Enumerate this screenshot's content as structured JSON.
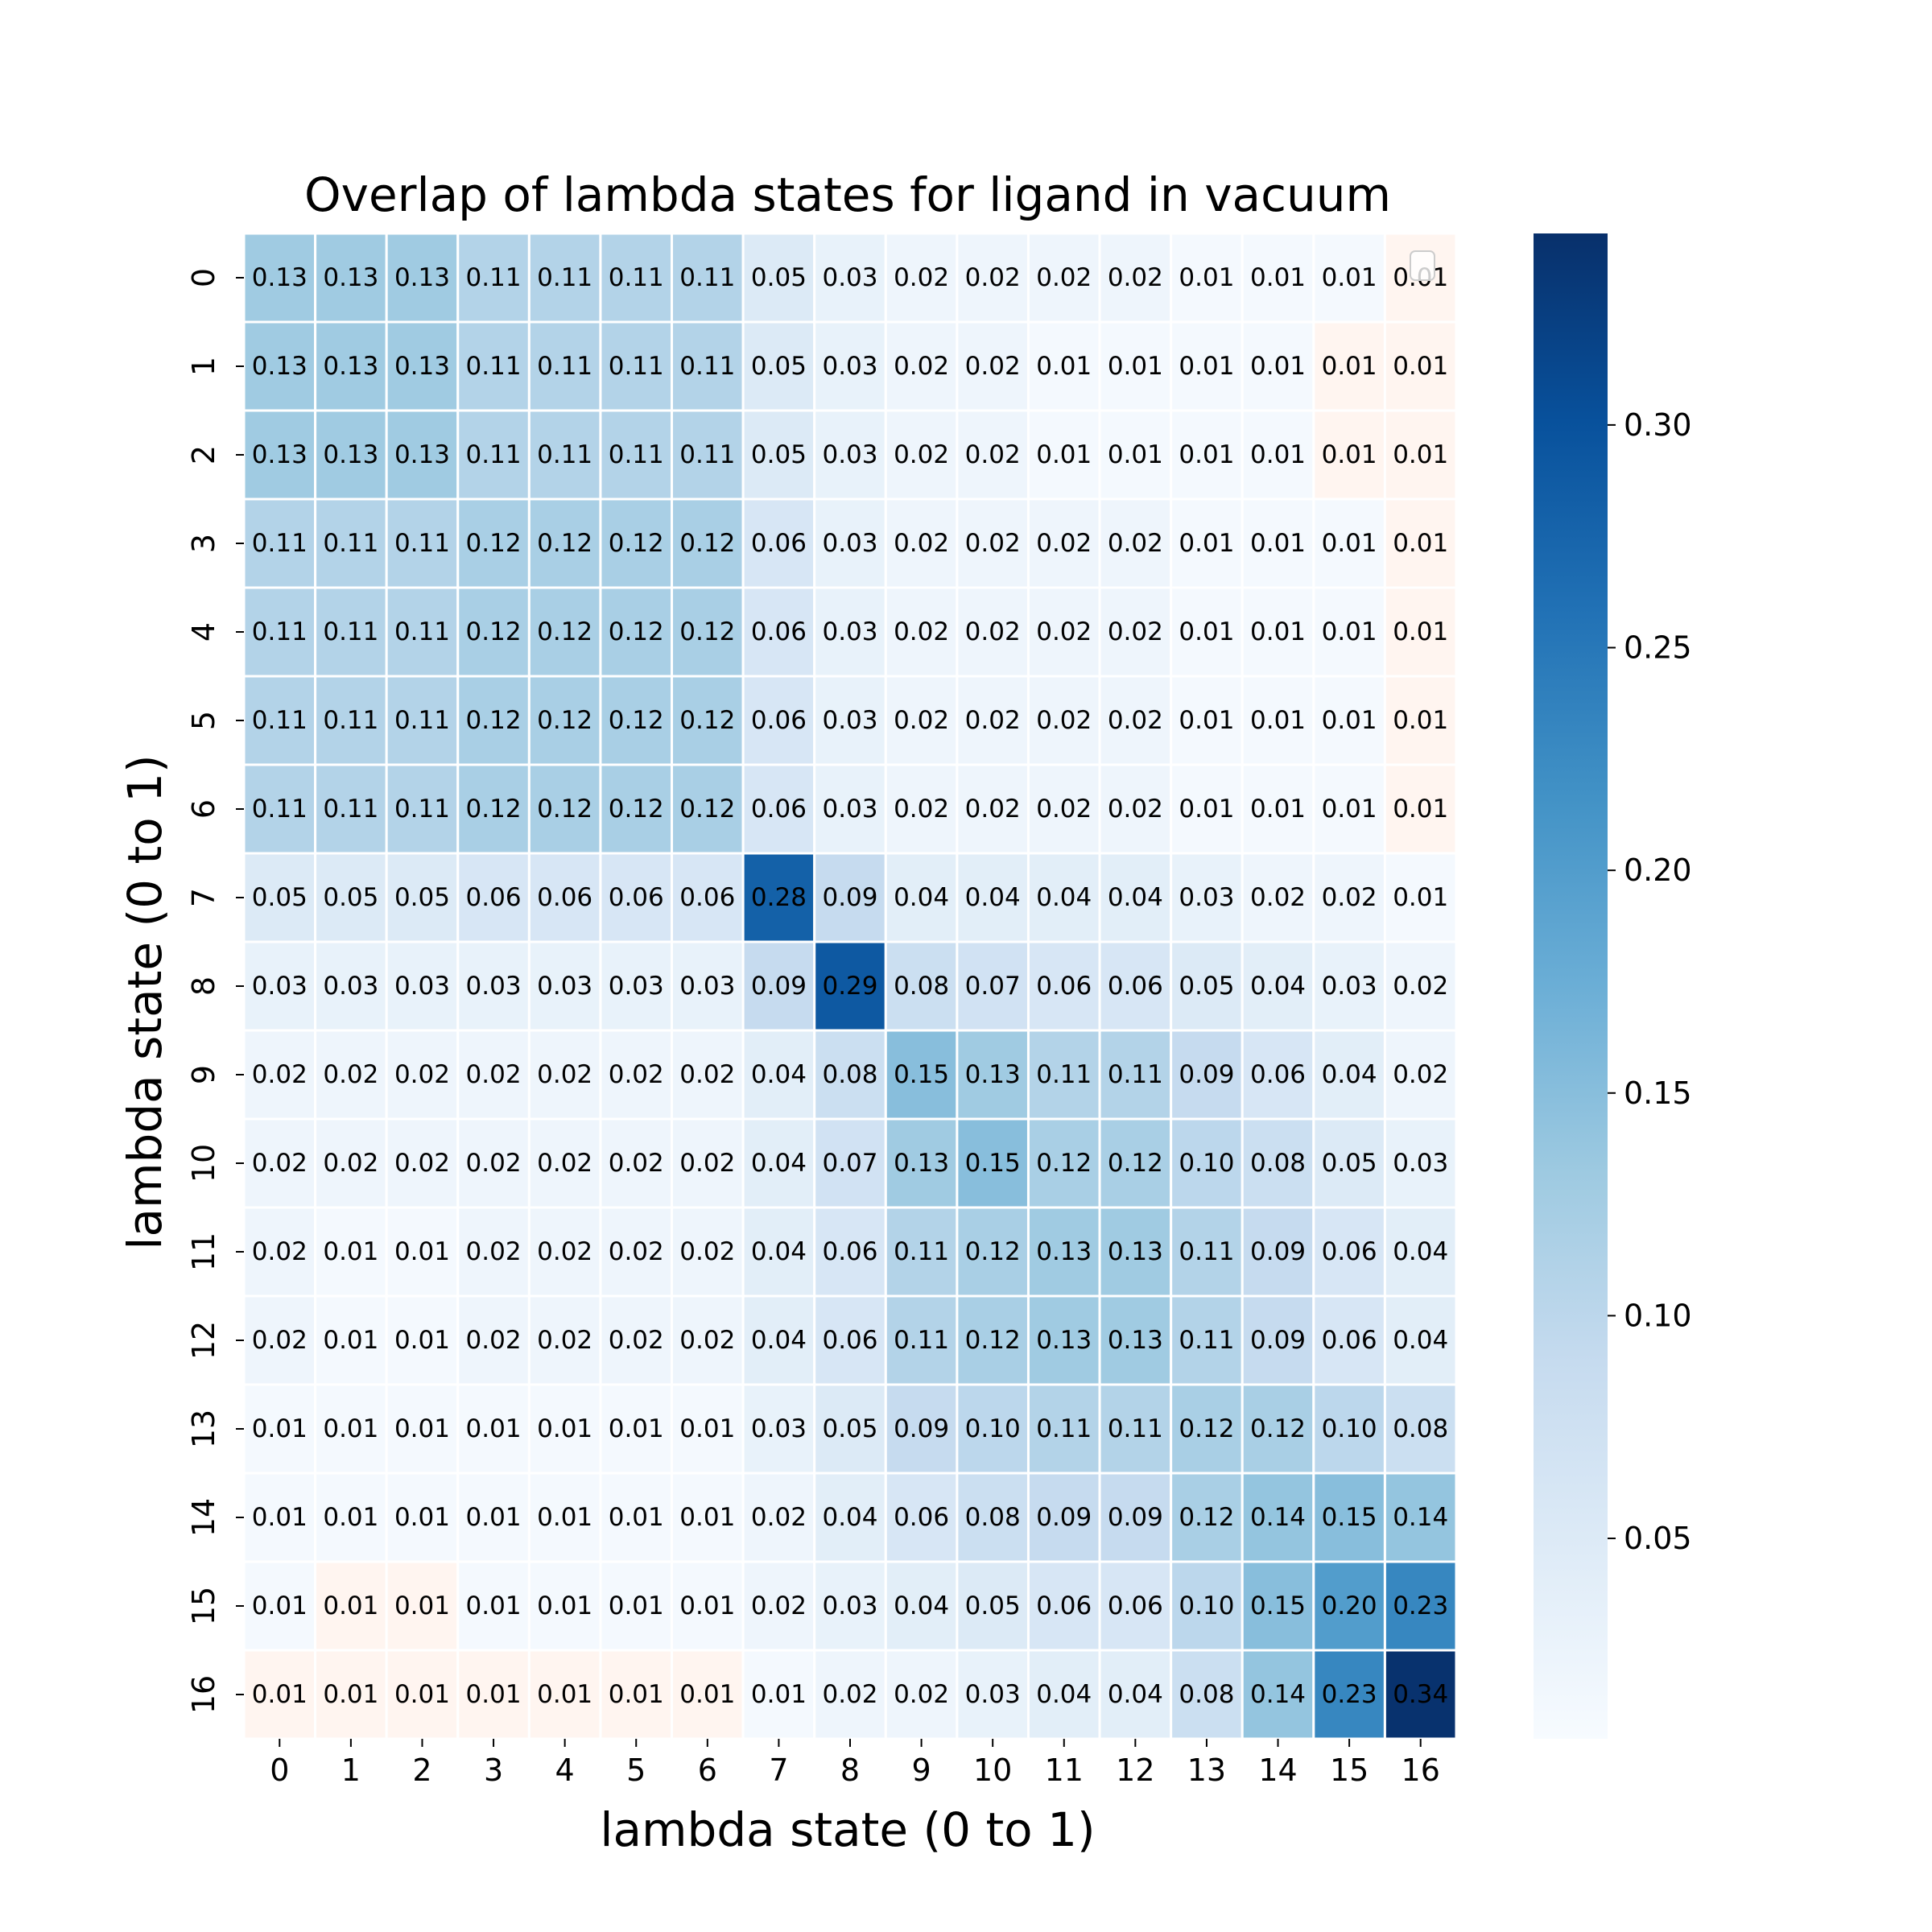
{
  "chart_data": {
    "type": "heatmap",
    "title": "Overlap of lambda states for ligand in vacuum",
    "xlabel": "lambda state (0 to 1)",
    "ylabel": "lambda state (0 to 1)",
    "x_categories": [
      "0",
      "1",
      "2",
      "3",
      "4",
      "5",
      "6",
      "7",
      "8",
      "9",
      "10",
      "11",
      "12",
      "13",
      "14",
      "15",
      "16"
    ],
    "y_categories": [
      "0",
      "1",
      "2",
      "3",
      "4",
      "5",
      "6",
      "7",
      "8",
      "9",
      "10",
      "11",
      "12",
      "13",
      "14",
      "15",
      "16"
    ],
    "values": [
      [
        0.13,
        0.13,
        0.13,
        0.11,
        0.11,
        0.11,
        0.11,
        0.05,
        0.03,
        0.02,
        0.02,
        0.02,
        0.02,
        0.01,
        0.01,
        0.01,
        0.01
      ],
      [
        0.13,
        0.13,
        0.13,
        0.11,
        0.11,
        0.11,
        0.11,
        0.05,
        0.03,
        0.02,
        0.02,
        0.01,
        0.01,
        0.01,
        0.01,
        0.01,
        0.01
      ],
      [
        0.13,
        0.13,
        0.13,
        0.11,
        0.11,
        0.11,
        0.11,
        0.05,
        0.03,
        0.02,
        0.02,
        0.01,
        0.01,
        0.01,
        0.01,
        0.01,
        0.01
      ],
      [
        0.11,
        0.11,
        0.11,
        0.12,
        0.12,
        0.12,
        0.12,
        0.06,
        0.03,
        0.02,
        0.02,
        0.02,
        0.02,
        0.01,
        0.01,
        0.01,
        0.01
      ],
      [
        0.11,
        0.11,
        0.11,
        0.12,
        0.12,
        0.12,
        0.12,
        0.06,
        0.03,
        0.02,
        0.02,
        0.02,
        0.02,
        0.01,
        0.01,
        0.01,
        0.01
      ],
      [
        0.11,
        0.11,
        0.11,
        0.12,
        0.12,
        0.12,
        0.12,
        0.06,
        0.03,
        0.02,
        0.02,
        0.02,
        0.02,
        0.01,
        0.01,
        0.01,
        0.01
      ],
      [
        0.11,
        0.11,
        0.11,
        0.12,
        0.12,
        0.12,
        0.12,
        0.06,
        0.03,
        0.02,
        0.02,
        0.02,
        0.02,
        0.01,
        0.01,
        0.01,
        0.01
      ],
      [
        0.05,
        0.05,
        0.05,
        0.06,
        0.06,
        0.06,
        0.06,
        0.28,
        0.09,
        0.04,
        0.04,
        0.04,
        0.04,
        0.03,
        0.02,
        0.02,
        0.01
      ],
      [
        0.03,
        0.03,
        0.03,
        0.03,
        0.03,
        0.03,
        0.03,
        0.09,
        0.29,
        0.08,
        0.07,
        0.06,
        0.06,
        0.05,
        0.04,
        0.03,
        0.02
      ],
      [
        0.02,
        0.02,
        0.02,
        0.02,
        0.02,
        0.02,
        0.02,
        0.04,
        0.08,
        0.15,
        0.13,
        0.11,
        0.11,
        0.09,
        0.06,
        0.04,
        0.02
      ],
      [
        0.02,
        0.02,
        0.02,
        0.02,
        0.02,
        0.02,
        0.02,
        0.04,
        0.07,
        0.13,
        0.15,
        0.12,
        0.12,
        0.1,
        0.08,
        0.05,
        0.03
      ],
      [
        0.02,
        0.01,
        0.01,
        0.02,
        0.02,
        0.02,
        0.02,
        0.04,
        0.06,
        0.11,
        0.12,
        0.13,
        0.13,
        0.11,
        0.09,
        0.06,
        0.04
      ],
      [
        0.02,
        0.01,
        0.01,
        0.02,
        0.02,
        0.02,
        0.02,
        0.04,
        0.06,
        0.11,
        0.12,
        0.13,
        0.13,
        0.11,
        0.09,
        0.06,
        0.04
      ],
      [
        0.01,
        0.01,
        0.01,
        0.01,
        0.01,
        0.01,
        0.01,
        0.03,
        0.05,
        0.09,
        0.1,
        0.11,
        0.11,
        0.12,
        0.12,
        0.1,
        0.08
      ],
      [
        0.01,
        0.01,
        0.01,
        0.01,
        0.01,
        0.01,
        0.01,
        0.02,
        0.04,
        0.06,
        0.08,
        0.09,
        0.09,
        0.12,
        0.14,
        0.15,
        0.14
      ],
      [
        0.01,
        0.01,
        0.01,
        0.01,
        0.01,
        0.01,
        0.01,
        0.02,
        0.03,
        0.04,
        0.05,
        0.06,
        0.06,
        0.1,
        0.15,
        0.2,
        0.23
      ],
      [
        0.01,
        0.01,
        0.01,
        0.01,
        0.01,
        0.01,
        0.01,
        0.01,
        0.02,
        0.02,
        0.03,
        0.04,
        0.04,
        0.08,
        0.14,
        0.23,
        0.34
      ]
    ],
    "zero_flag_cells": [
      [
        0,
        16
      ],
      [
        1,
        15
      ],
      [
        1,
        16
      ],
      [
        2,
        15
      ],
      [
        2,
        16
      ],
      [
        3,
        16
      ],
      [
        4,
        16
      ],
      [
        5,
        16
      ],
      [
        6,
        16
      ],
      [
        15,
        1
      ],
      [
        15,
        2
      ],
      [
        16,
        0
      ],
      [
        16,
        1
      ],
      [
        16,
        2
      ],
      [
        16,
        3
      ],
      [
        16,
        4
      ],
      [
        16,
        5
      ],
      [
        16,
        6
      ]
    ],
    "zero_flag_color": "#fff5f0",
    "colormap": "Blues",
    "vmin": 0.005,
    "vmax": 0.343,
    "colorbar_ticks": [
      "0.05",
      "0.10",
      "0.15",
      "0.20",
      "0.25",
      "0.30"
    ],
    "colorbar_tick_values": [
      0.05,
      0.1,
      0.15,
      0.2,
      0.25,
      0.3
    ],
    "cell_border_color": "#ffffff",
    "annotation_format": "0.00",
    "legend_placement": "top-right (empty)"
  }
}
